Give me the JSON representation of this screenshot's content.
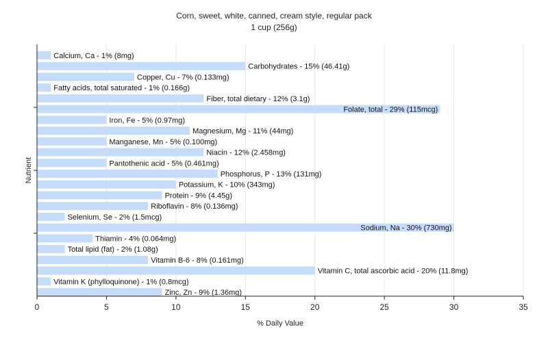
{
  "chart_data": {
    "type": "bar",
    "orientation": "horizontal",
    "title": "Corn, sweet, white, canned, cream style, regular pack",
    "subtitle": "1 cup (256g)",
    "xlabel": "% Daily Value",
    "ylabel": "Nutrient",
    "xlim": [
      0,
      35
    ],
    "xticks": [
      0,
      5,
      10,
      15,
      20,
      25,
      30,
      35
    ],
    "grid": true,
    "bar_color": "#c6dcfb",
    "categories": [
      "Calcium, Ca",
      "Carbohydrates",
      "Copper, Cu",
      "Fatty acids, total saturated",
      "Fiber, total dietary",
      "Folate, total",
      "Iron, Fe",
      "Magnesium, Mg",
      "Manganese, Mn",
      "Niacin",
      "Pantothenic acid",
      "Phosphorus, P",
      "Potassium, K",
      "Protein",
      "Riboflavin",
      "Selenium, Se",
      "Sodium, Na",
      "Thiamin",
      "Total lipid (fat)",
      "Vitamin B-6",
      "Vitamin C, total ascorbic acid",
      "Vitamin K (phylloquinone)",
      "Zinc, Zn"
    ],
    "values": [
      1,
      15,
      7,
      1,
      12,
      29,
      5,
      11,
      5,
      12,
      5,
      13,
      10,
      9,
      8,
      2,
      30,
      4,
      2,
      8,
      20,
      1,
      9
    ],
    "labels": [
      "Calcium, Ca - 1% (8mg)",
      "Carbohydrates - 15% (46.41g)",
      "Copper, Cu - 7% (0.133mg)",
      "Fatty acids, total saturated - 1% (0.166g)",
      "Fiber, total dietary - 12% (3.1g)",
      "Folate, total - 29% (115mcg)",
      "Iron, Fe - 5% (0.97mg)",
      "Magnesium, Mg - 11% (44mg)",
      "Manganese, Mn - 5% (0.100mg)",
      "Niacin - 12% (2.458mg)",
      "Pantothenic acid - 5% (0.461mg)",
      "Phosphorus, P - 13% (131mg)",
      "Potassium, K - 10% (343mg)",
      "Protein - 9% (4.45g)",
      "Riboflavin - 8% (0.136mg)",
      "Selenium, Se - 2% (1.5mcg)",
      "Sodium, Na - 30% (730mg)",
      "Thiamin - 4% (0.064mg)",
      "Total lipid (fat) - 2% (1.08g)",
      "Vitamin B-6 - 8% (0.161mg)",
      "Vitamin C, total ascorbic acid - 20% (11.8mg)",
      "Vitamin K (phylloquinone) - 1% (0.8mcg)",
      "Zinc, Zn - 9% (1.36mg)"
    ]
  }
}
